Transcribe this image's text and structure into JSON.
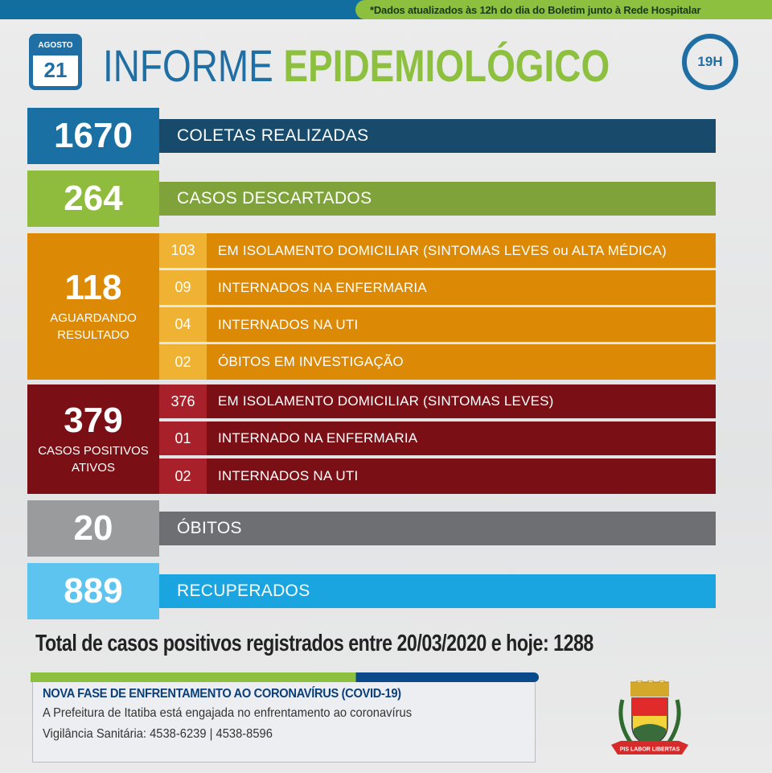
{
  "header": {
    "note": "*Dados atualizados às 12h do dia do Boletim junto à Rede Hospitalar",
    "month": "AGOSTO",
    "day": "21",
    "title_part1": "INFORME",
    "title_part2": "EPIDEMIOLÓGICO",
    "time": "19H"
  },
  "colors": {
    "blue": "#1a6fa3",
    "green": "#8fbc3c",
    "orange": "#dc8a06",
    "darkred": "#7a1015",
    "gray": "#6e6f72",
    "lightblue": "#1ba5e0"
  },
  "coletas": {
    "value": "1670",
    "label": "COLETAS REALIZADAS"
  },
  "descartados": {
    "value": "264",
    "label": "CASOS DESCARTADOS"
  },
  "aguardando": {
    "value": "118",
    "label": "AGUARDANDO RESULTADO",
    "items": [
      {
        "value": "103",
        "label": "EM ISOLAMENTO DOMICILIAR (SINTOMAS LEVES ou ALTA MÉDICA)"
      },
      {
        "value": "09",
        "label": "INTERNADOS NA ENFERMARIA"
      },
      {
        "value": "04",
        "label": "INTERNADOS NA UTI"
      },
      {
        "value": "02",
        "label": "ÓBITOS EM INVESTIGAÇÃO"
      }
    ]
  },
  "positivos": {
    "value": "379",
    "label": "CASOS POSITIVOS ATIVOS",
    "items": [
      {
        "value": "376",
        "label": "EM ISOLAMENTO DOMICILIAR (SINTOMAS LEVES)"
      },
      {
        "value": "01",
        "label": "INTERNADO NA ENFERMARIA"
      },
      {
        "value": "02",
        "label": "INTERNADOS NA UTI"
      }
    ]
  },
  "obitos": {
    "value": "20",
    "label": "ÓBITOS"
  },
  "recuperados": {
    "value": "889",
    "label": "RECUPERADOS"
  },
  "total": "Total de casos positivos registrados entre 20/03/2020 e hoje: 1288",
  "footer": {
    "heading": "NOVA FASE DE ENFRENTAMENTO AO CORONAVÍRUS (COVID-19)",
    "line1": "A Prefeitura de Itatiba está engajada no enfrentamento ao coronavírus",
    "line2": "Vigilância Sanitária: 4538-6239 | 4538-8596",
    "crest_motto": "PIS LABOR LIBERTAS"
  }
}
